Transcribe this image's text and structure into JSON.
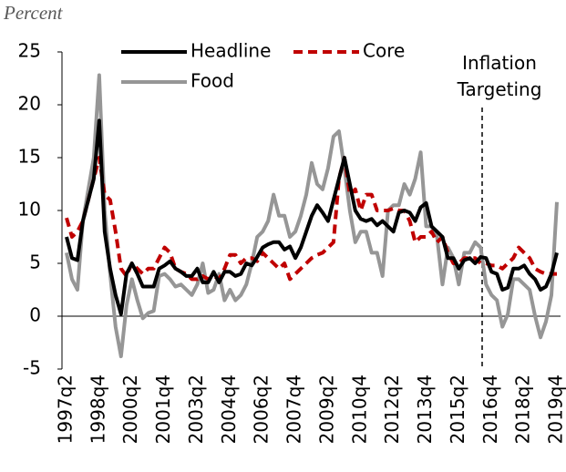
{
  "chart_data": {
    "type": "line",
    "y_label": "Percent",
    "annotation": "Inflation Targeting",
    "categories": [
      "1997q2",
      null,
      null,
      null,
      null,
      null,
      "1998q4",
      null,
      null,
      null,
      null,
      null,
      "2000q2",
      null,
      null,
      null,
      null,
      null,
      "2001q4",
      null,
      null,
      null,
      null,
      null,
      "2003q2",
      null,
      null,
      null,
      null,
      null,
      "2004q4",
      null,
      null,
      null,
      null,
      null,
      "2006q2",
      null,
      null,
      null,
      null,
      null,
      "2007q4",
      null,
      null,
      null,
      null,
      null,
      "2009q2",
      null,
      null,
      null,
      null,
      null,
      "2010q4",
      null,
      null,
      null,
      null,
      null,
      "2012q2",
      null,
      null,
      null,
      null,
      null,
      "2013q4",
      null,
      null,
      null,
      null,
      null,
      "2015q2",
      null,
      null,
      null,
      null,
      null,
      "2016q4",
      null,
      null,
      null,
      null,
      null,
      "2018q2",
      null,
      null,
      null,
      null,
      null,
      "2019q4"
    ],
    "series": [
      {
        "name": "Headline",
        "color": "#000000",
        "dash": false,
        "values": [
          7.5,
          5.5,
          5.3,
          9,
          11,
          13,
          18.5,
          8,
          4.5,
          2,
          0.2,
          4,
          5,
          4,
          2.8,
          2.8,
          2.8,
          4.5,
          4.8,
          5.2,
          4.5,
          4.2,
          3.8,
          3.8,
          4.5,
          3.2,
          3.2,
          4.2,
          3.2,
          4.2,
          4.2,
          3.8,
          4,
          5,
          4.8,
          5.6,
          6.5,
          6.8,
          7,
          7,
          6.3,
          6.6,
          5.5,
          6.5,
          8,
          9.5,
          10.5,
          9.8,
          9,
          11,
          13,
          15,
          12.5,
          10,
          9.2,
          9,
          9.2,
          8.6,
          9,
          8.5,
          8,
          9.8,
          10,
          9.8,
          9,
          10.3,
          10.7,
          8.5,
          8,
          7.5,
          5.5,
          5.5,
          4.5,
          5.3,
          5.5,
          5,
          5.6,
          5.5,
          4.2,
          4,
          2.5,
          2.7,
          4.5,
          4.5,
          4.8,
          4,
          3.5,
          2.5,
          2.8,
          4,
          6
        ]
      },
      {
        "name": "Core",
        "color": "#c00000",
        "dash": true,
        "values": [
          9.3,
          7.5,
          8,
          9,
          11,
          13,
          15,
          11.5,
          11,
          8,
          4.5,
          3.8,
          5,
          4.5,
          4,
          4.5,
          4.5,
          5.5,
          6.5,
          6,
          4.5,
          4.2,
          4,
          3.5,
          3.5,
          3.8,
          3.5,
          3.8,
          3.5,
          4.5,
          5.8,
          5.8,
          5,
          5.5,
          5.5,
          5.2,
          6,
          5.5,
          5,
          4.5,
          5,
          3.5,
          4,
          4.5,
          5,
          5.5,
          5.8,
          6,
          6.5,
          7,
          13,
          15,
          11.5,
          12,
          10,
          11.5,
          11.5,
          10,
          10,
          10,
          10.2,
          10,
          10,
          9,
          7,
          7.5,
          7.5,
          8,
          7,
          7.5,
          6,
          5,
          5,
          5.5,
          5.5,
          5.5,
          5,
          5,
          4.8,
          4.8,
          4.5,
          5,
          5.5,
          6.5,
          6,
          5.5,
          4.5,
          4.2,
          4,
          4,
          4
        ]
      },
      {
        "name": "Food",
        "color": "#969696",
        "dash": false,
        "values": [
          6,
          3.5,
          2.5,
          9,
          12,
          15,
          22.8,
          10,
          4,
          -1,
          -3.8,
          1,
          3.5,
          1.5,
          -0.2,
          0.3,
          0.5,
          3.8,
          4,
          3.5,
          2.8,
          3,
          2.5,
          2,
          3,
          5,
          2.2,
          2.5,
          4,
          1.5,
          2.5,
          1.5,
          2,
          3,
          5,
          7.5,
          8,
          9,
          11.5,
          9.5,
          9.5,
          7.5,
          8,
          9.5,
          11.5,
          14.5,
          12.5,
          12,
          14,
          17,
          17.5,
          14,
          10,
          7,
          8,
          8,
          6,
          6,
          3.8,
          10,
          10.5,
          10.5,
          12.5,
          11.5,
          13,
          15.5,
          8.5,
          8.5,
          7.5,
          3,
          6.5,
          5.5,
          3,
          6,
          6,
          7,
          6.5,
          3,
          2,
          1.5,
          -1,
          0.2,
          3.5,
          3.5,
          3,
          2.5,
          0,
          -2,
          -0.5,
          2,
          10.8
        ]
      }
    ],
    "ylim": [
      -5,
      25
    ],
    "yticks": [
      -5,
      0,
      5,
      10,
      15,
      20,
      25
    ],
    "grid": false
  }
}
